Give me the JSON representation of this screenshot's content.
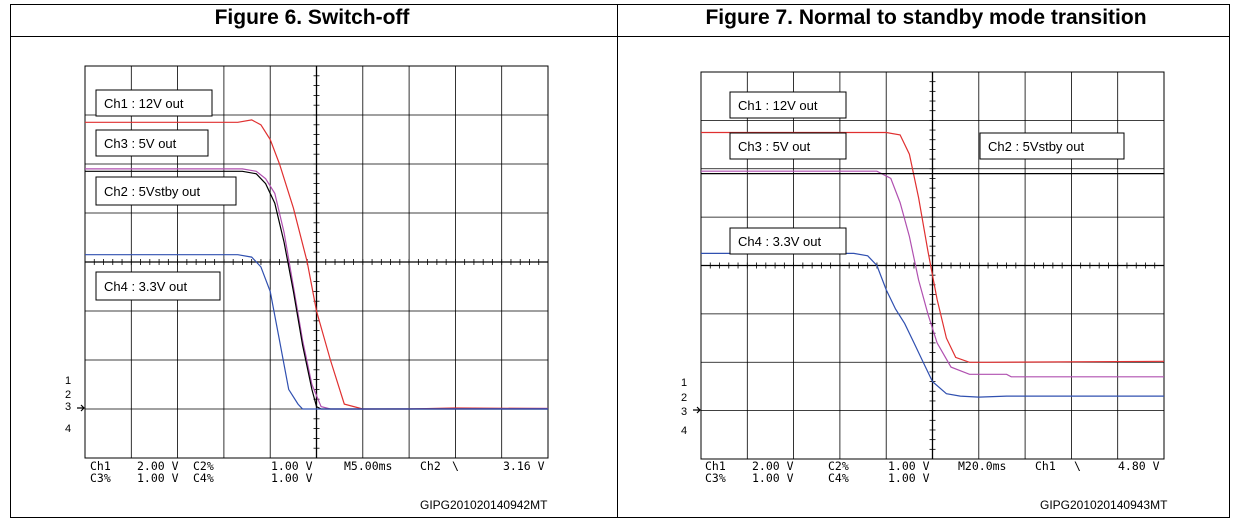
{
  "figures": [
    {
      "title": "Figure 6. Switch-off",
      "code": "GIPG201020140942MT"
    },
    {
      "title": "Figure 7. Normal to standby mode transition",
      "code": "GIPG201020140943MT"
    }
  ],
  "chart_data": [
    {
      "type": "line",
      "title": "Figure 6. Switch-off",
      "xlabel": "",
      "ylabel": "",
      "grid": true,
      "x_unit": "div",
      "y_unit": "div",
      "xlim": [
        0,
        10
      ],
      "ylim": [
        -4,
        4
      ],
      "channel_markers": [
        "1",
        "2",
        "3",
        "4"
      ],
      "labels": [
        "Ch1 : 12V out",
        "Ch3 : 5V out",
        "Ch2 : 5Vstby out",
        "Ch4 : 3.3V out"
      ],
      "readout": {
        "line1": [
          "Ch1",
          "2.00 V",
          "C2%",
          "1.00 V",
          "M5.00ms",
          "Ch2",
          "\\",
          "3.16 V"
        ],
        "line2": [
          "C3%",
          "1.00 V",
          "C4%",
          "1.00 V"
        ]
      },
      "series": [
        {
          "name": "Ch1 : 12V out",
          "color": "#e03030",
          "x": [
            0,
            3.3,
            3.6,
            3.8,
            4.0,
            4.2,
            4.5,
            4.8,
            5.0,
            5.3,
            5.6,
            6.0,
            7.0,
            8.0,
            10.0
          ],
          "y": [
            2.85,
            2.85,
            2.9,
            2.8,
            2.5,
            2.0,
            1.1,
            0.0,
            -1.0,
            -2.0,
            -2.9,
            -3.0,
            -3.0,
            -2.98,
            -2.99
          ]
        },
        {
          "name": "Ch3 : 5V out",
          "color": "#b050b0",
          "x": [
            0,
            3.4,
            3.7,
            3.9,
            4.1,
            4.3,
            4.5,
            4.7,
            4.9,
            5.1,
            5.3,
            6.0,
            10.0
          ],
          "y": [
            1.9,
            1.9,
            1.85,
            1.7,
            1.4,
            0.6,
            -0.5,
            -1.6,
            -2.5,
            -2.95,
            -3.0,
            -3.0,
            -2.99
          ]
        },
        {
          "name": "Ch2 : 5Vstby out",
          "color": "#000000",
          "x": [
            0,
            3.4,
            3.7,
            3.9,
            4.1,
            4.3,
            4.5,
            4.7,
            4.9,
            5.0,
            5.1,
            6.0,
            10.0
          ],
          "y": [
            1.85,
            1.85,
            1.8,
            1.6,
            1.2,
            0.4,
            -0.6,
            -1.7,
            -2.6,
            -2.95,
            -3.0,
            -3.0,
            -3.0
          ]
        },
        {
          "name": "Ch4 : 3.3V out",
          "color": "#3050b0",
          "x": [
            0,
            3.3,
            3.6,
            3.8,
            4.0,
            4.2,
            4.4,
            4.6,
            4.7,
            4.8,
            5.0,
            6.0,
            10.0
          ],
          "y": [
            0.15,
            0.15,
            0.1,
            -0.1,
            -0.6,
            -1.6,
            -2.6,
            -2.9,
            -3.0,
            -3.0,
            -3.0,
            -3.0,
            -3.0
          ]
        }
      ]
    },
    {
      "type": "line",
      "title": "Figure 7. Normal to standby mode transition",
      "xlabel": "",
      "ylabel": "",
      "grid": true,
      "x_unit": "div",
      "y_unit": "div",
      "xlim": [
        0,
        10
      ],
      "ylim": [
        -4,
        4
      ],
      "channel_markers": [
        "1",
        "2",
        "3",
        "4"
      ],
      "labels": [
        "Ch1 : 12V out",
        "Ch3 : 5V out",
        "Ch2 : 5Vstby out",
        "Ch4 : 3.3V out"
      ],
      "readout": {
        "line1": [
          "Ch1",
          "2.00 V",
          "C2%",
          "1.00 V",
          "M20.0ms",
          "Ch1",
          "\\",
          "4.80 V"
        ],
        "line2": [
          "C3%",
          "1.00 V",
          "C4%",
          "1.00 V"
        ]
      },
      "series": [
        {
          "name": "Ch1 : 12V out",
          "color": "#e03030",
          "x": [
            0,
            4.0,
            4.3,
            4.5,
            4.7,
            4.9,
            5.1,
            5.3,
            5.5,
            5.8,
            6.2,
            10.0
          ],
          "y": [
            2.75,
            2.75,
            2.7,
            2.3,
            1.4,
            0.3,
            -0.7,
            -1.5,
            -1.9,
            -2.0,
            -2.0,
            -1.98
          ]
        },
        {
          "name": "Ch3 : 5V out",
          "color": "#b050b0",
          "x": [
            0,
            3.8,
            4.1,
            4.3,
            4.5,
            4.7,
            4.9,
            5.1,
            5.4,
            5.8,
            6.6,
            6.7,
            10.0
          ],
          "y": [
            1.95,
            1.95,
            1.8,
            1.3,
            0.6,
            -0.3,
            -1.0,
            -1.6,
            -2.1,
            -2.25,
            -2.25,
            -2.3,
            -2.3
          ]
        },
        {
          "name": "Ch2 : 5Vstby out",
          "color": "#000000",
          "x": [
            0,
            10.0
          ],
          "y": [
            1.9,
            1.9
          ]
        },
        {
          "name": "Ch4 : 3.3V out",
          "color": "#3050b0",
          "x": [
            0,
            3.3,
            3.6,
            3.8,
            4.0,
            4.2,
            4.4,
            4.6,
            4.8,
            5.0,
            5.3,
            5.6,
            6.0,
            6.6,
            6.8,
            10.0
          ],
          "y": [
            0.25,
            0.25,
            0.2,
            0.0,
            -0.5,
            -0.9,
            -1.2,
            -1.6,
            -2.0,
            -2.4,
            -2.65,
            -2.7,
            -2.72,
            -2.7,
            -2.7,
            -2.7
          ]
        }
      ]
    }
  ]
}
